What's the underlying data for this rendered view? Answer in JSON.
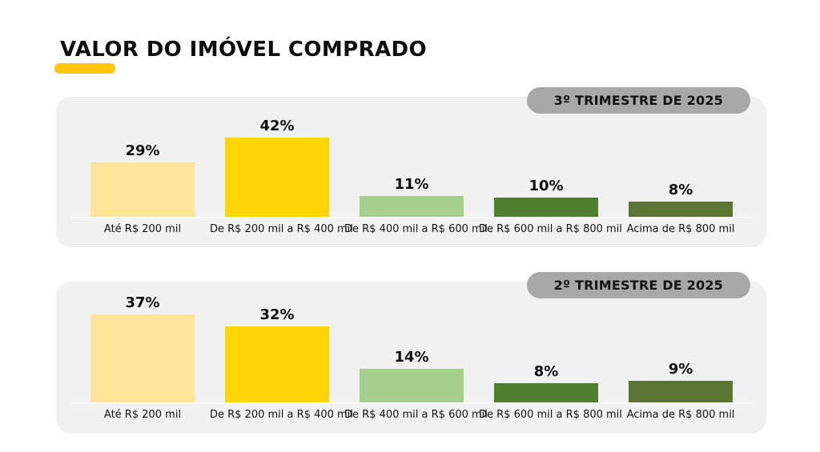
{
  "header": {
    "title": "VALOR DO IMÓVEL COMPRADO"
  },
  "colors": {
    "accent_yellow": "#FCC60A",
    "panel_background": "#F1F1F1",
    "badge_background": "#A8A8A8",
    "axis_line": "#FAFAFA",
    "text": "#0D0D0D",
    "bar_palette": [
      "#FFE59A",
      "#FFD504",
      "#A6CF8D",
      "#4F7E2F",
      "#5C7434"
    ]
  },
  "chart_data": [
    {
      "type": "bar",
      "title": "3º TRIMESTRE DE 2025",
      "categories": [
        "Até R$ 200 mil",
        "De R$ 200 mil a R$ 400 mil",
        "De R$ 400 mil a R$ 600 mil",
        "De R$ 600 mil a R$ 800 mil",
        "Acima de R$ 800 mil"
      ],
      "values": [
        29,
        42,
        11,
        10,
        8
      ],
      "value_labels": [
        "29%",
        "42%",
        "11%",
        "10%",
        "8%"
      ],
      "unit": "%",
      "ylim": [
        0,
        45
      ],
      "grid": false,
      "legend": "none",
      "xlabel": "",
      "ylabel": ""
    },
    {
      "type": "bar",
      "title": "2º TRIMESTRE DE 2025",
      "categories": [
        "Até R$ 200 mil",
        "De R$ 200 mil a R$ 400 mil",
        "De R$ 400 mil a R$ 600 mil",
        "De R$ 600 mil a R$ 800 mil",
        "Acima de R$ 800 mil"
      ],
      "values": [
        37,
        32,
        14,
        8,
        9
      ],
      "value_labels": [
        "37%",
        "32%",
        "14%",
        "8%",
        "9%"
      ],
      "unit": "%",
      "ylim": [
        0,
        40
      ],
      "grid": false,
      "legend": "none",
      "xlabel": "",
      "ylabel": ""
    }
  ]
}
